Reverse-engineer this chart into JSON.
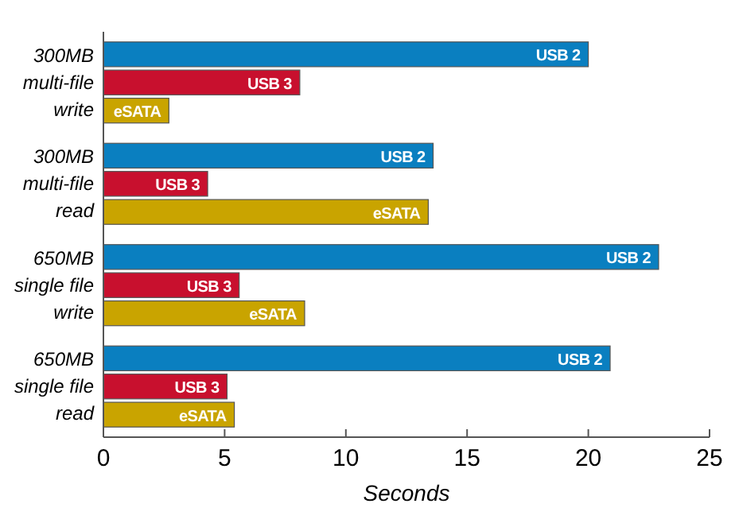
{
  "chart_data": {
    "type": "bar",
    "orientation": "horizontal",
    "xlabel": "Seconds",
    "categories": [
      "300MB\nmulti-file\nwrite",
      "300MB\nmulti-file\nread",
      "650MB\nsingle file\nwrite",
      "650MB\nsingle file\nread"
    ],
    "series": [
      {
        "name": "USB 2",
        "color": "#0a7fc0",
        "values": [
          20.0,
          13.6,
          22.9,
          20.9
        ]
      },
      {
        "name": "USB 3",
        "color": "#c8102e",
        "values": [
          8.1,
          4.3,
          5.6,
          5.1
        ]
      },
      {
        "name": "eSATA",
        "color": "#c9a400",
        "values": [
          2.7,
          13.4,
          8.3,
          5.4
        ]
      }
    ],
    "xlim": [
      0,
      25
    ],
    "xticks": [
      0,
      5,
      10,
      15,
      20,
      25
    ],
    "grid": false
  }
}
